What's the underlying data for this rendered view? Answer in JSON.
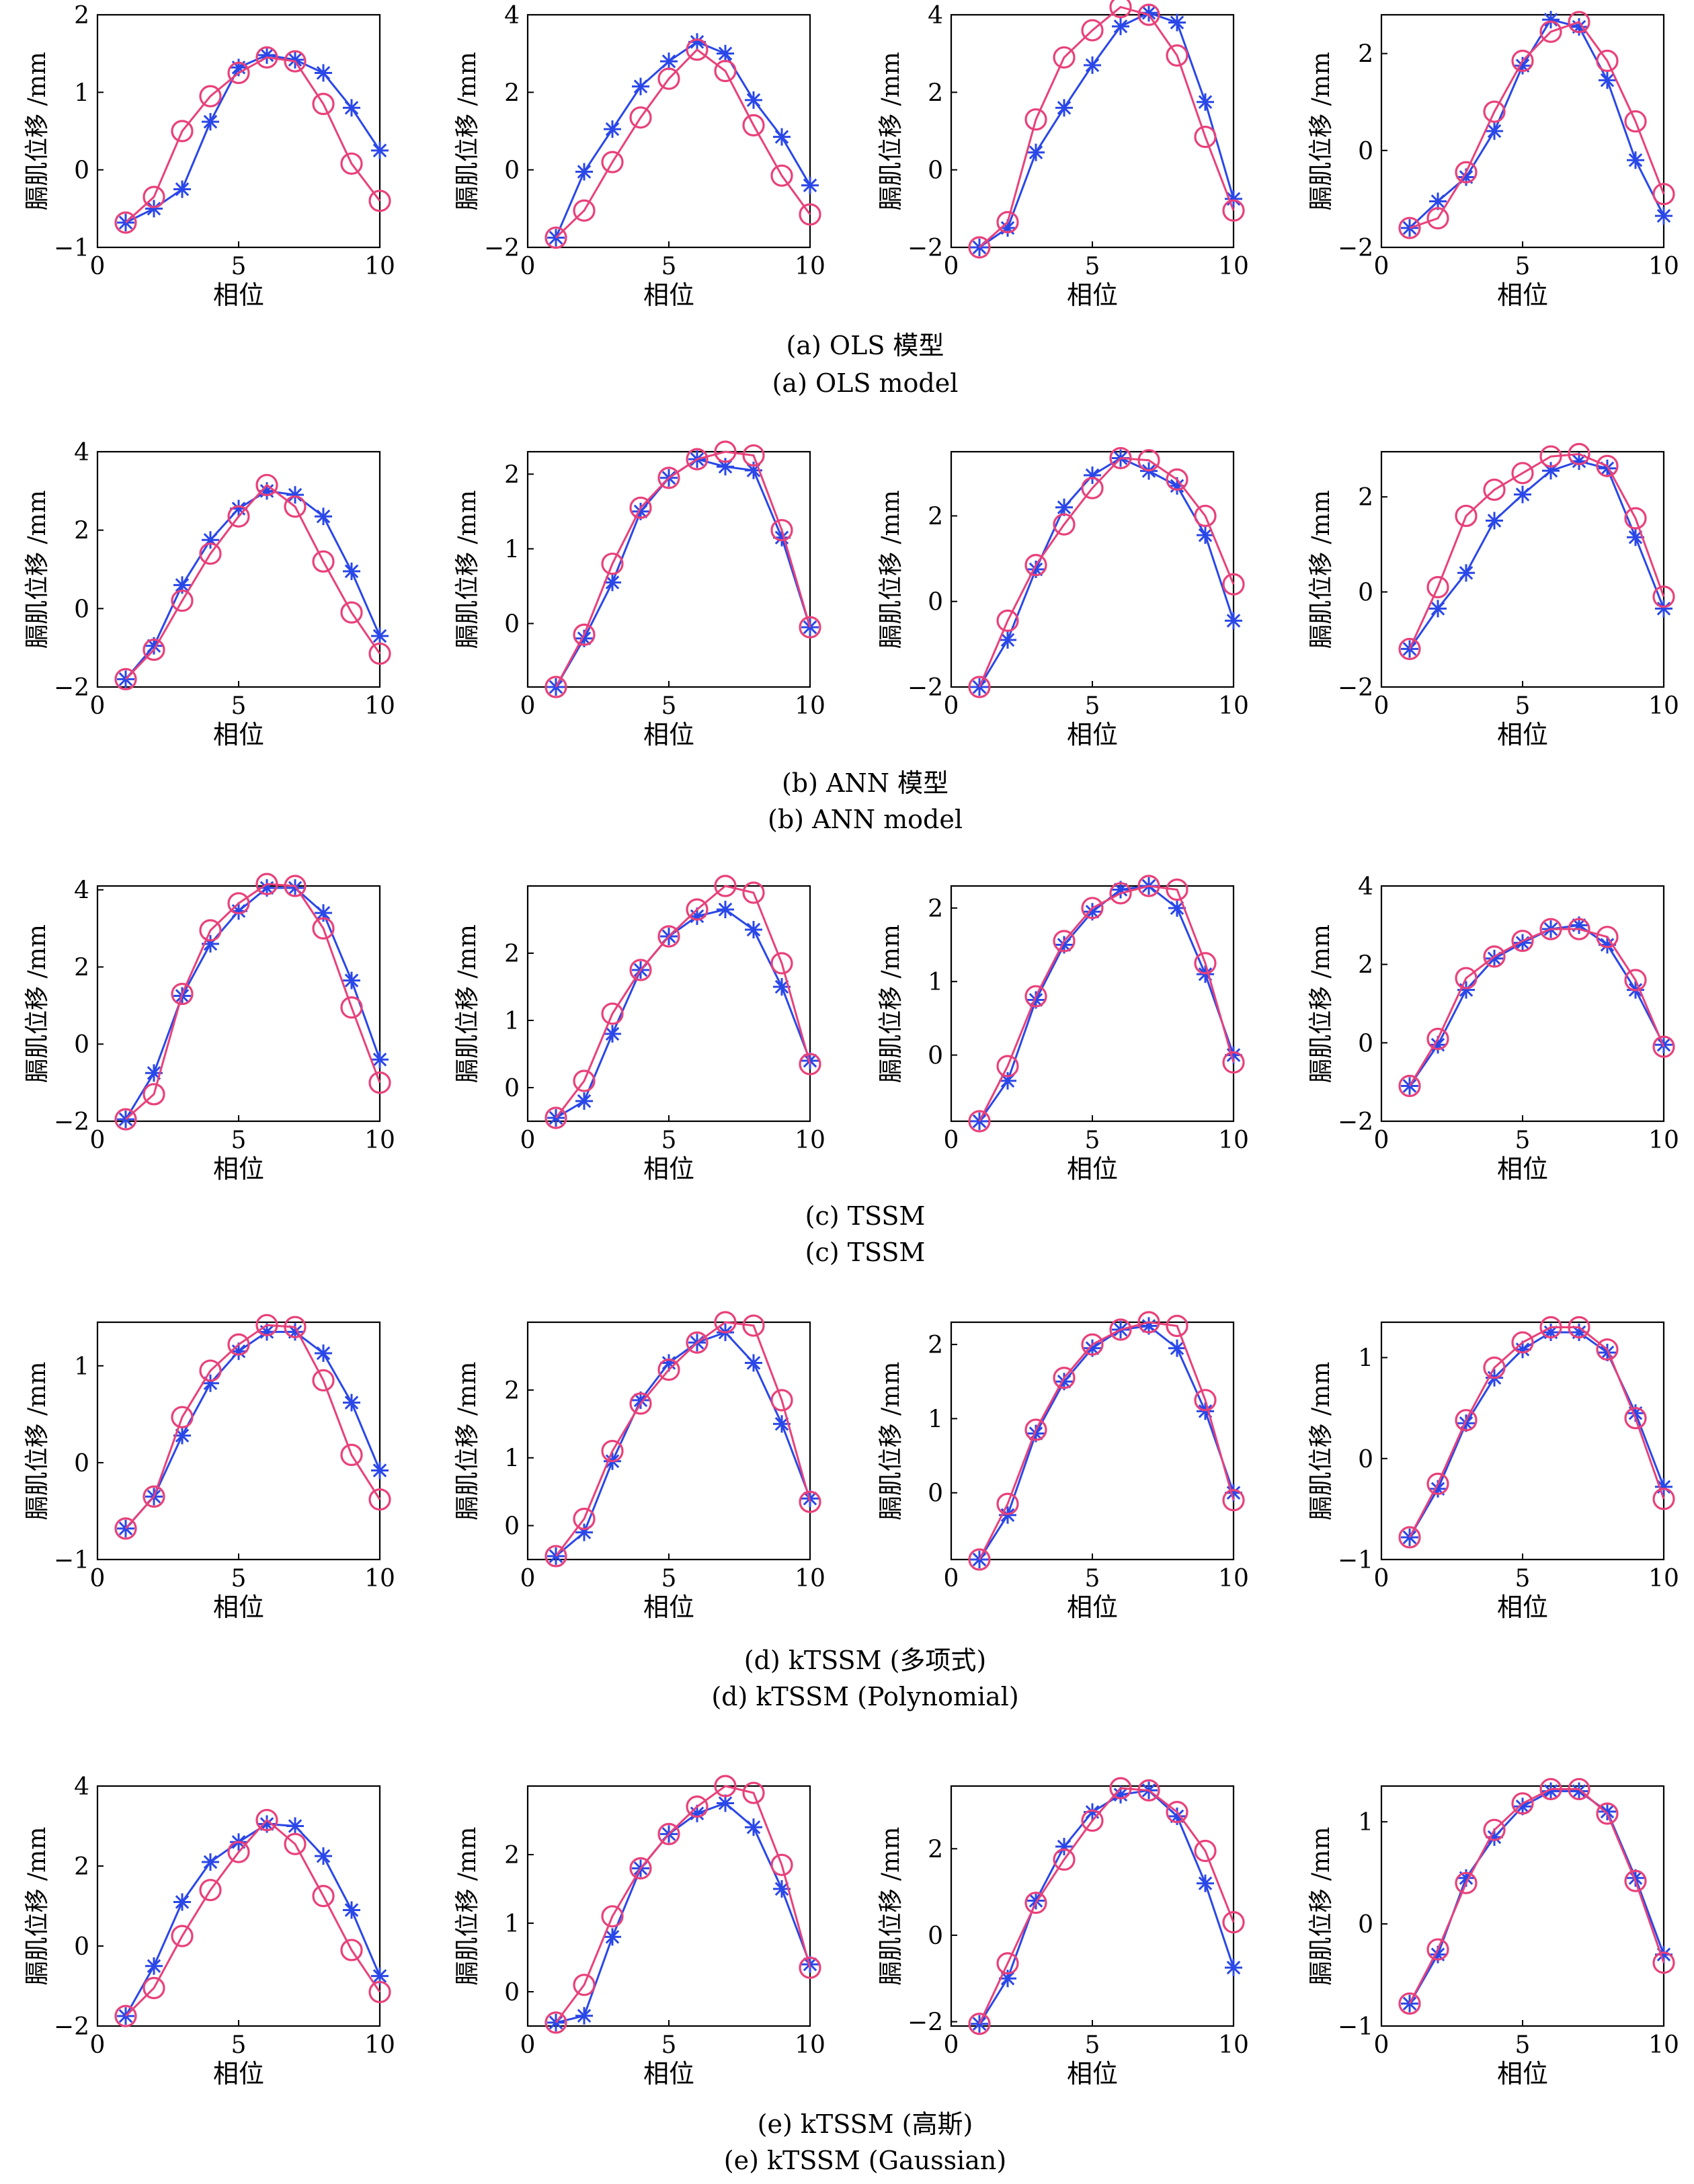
{
  "figure": {
    "y_axis_label": "膈肌位移 /mm",
    "x_axis_label": "相位",
    "series_colors": {
      "predicted": "#2a47e8",
      "measured": "#e8417a"
    },
    "markers": {
      "predicted": "asterisk",
      "measured": "circle"
    }
  },
  "panels": [
    {
      "caption_zh": "(a) OLS 模型",
      "caption_en": "(a) OLS model"
    },
    {
      "caption_zh": "(b) ANN 模型",
      "caption_en": "(b) ANN model"
    },
    {
      "caption_zh": "(c) TSSM",
      "caption_en": "(c) TSSM"
    },
    {
      "caption_zh": "(d) kTSSM (多项式)",
      "caption_en": "(d) kTSSM (Polynomial)"
    },
    {
      "caption_zh": "(e) kTSSM (高斯)",
      "caption_en": "(e) kTSSM (Gaussian)"
    }
  ],
  "chart_data": [
    {
      "panel": "a",
      "type": "line",
      "xlim": [
        0,
        10
      ],
      "ylim": [
        -1,
        2
      ],
      "x_ticks": [
        0,
        5,
        10
      ],
      "y_ticks": [
        -1,
        0,
        1,
        2
      ],
      "x": [
        1,
        2,
        3,
        4,
        5,
        6,
        7,
        8,
        9,
        10
      ],
      "series": [
        {
          "values": [
            -0.68,
            -0.5,
            -0.25,
            0.62,
            1.32,
            1.48,
            1.42,
            1.25,
            0.8,
            0.25
          ]
        },
        {
          "values": [
            -0.68,
            -0.35,
            0.5,
            0.95,
            1.25,
            1.45,
            1.4,
            0.85,
            0.08,
            -0.4
          ]
        }
      ]
    },
    {
      "panel": "a",
      "type": "line",
      "xlim": [
        0,
        10
      ],
      "ylim": [
        -2,
        4
      ],
      "x_ticks": [
        0,
        5,
        10
      ],
      "y_ticks": [
        -2,
        0,
        2,
        4
      ],
      "x": [
        1,
        2,
        3,
        4,
        5,
        6,
        7,
        8,
        9,
        10
      ],
      "series": [
        {
          "values": [
            -1.75,
            -0.05,
            1.05,
            2.15,
            2.8,
            3.3,
            3.0,
            1.8,
            0.85,
            -0.4
          ]
        },
        {
          "values": [
            -1.75,
            -1.05,
            0.2,
            1.35,
            2.35,
            3.1,
            2.55,
            1.15,
            -0.15,
            -1.15
          ]
        }
      ]
    },
    {
      "panel": "a",
      "type": "line",
      "xlim": [
        0,
        10
      ],
      "ylim": [
        -2,
        4
      ],
      "x_ticks": [
        0,
        5,
        10
      ],
      "y_ticks": [
        -2,
        0,
        2,
        4
      ],
      "x": [
        1,
        2,
        3,
        4,
        5,
        6,
        7,
        8,
        9,
        10
      ],
      "series": [
        {
          "values": [
            -2.0,
            -1.5,
            0.45,
            1.6,
            2.7,
            3.7,
            4.05,
            3.8,
            1.75,
            -0.75
          ]
        },
        {
          "values": [
            -2.0,
            -1.35,
            1.3,
            2.9,
            3.6,
            4.2,
            4.0,
            2.95,
            0.85,
            -1.05
          ]
        }
      ]
    },
    {
      "panel": "a",
      "type": "line",
      "xlim": [
        0,
        10
      ],
      "ylim": [
        -2,
        2.8
      ],
      "x_ticks": [
        0,
        5,
        10
      ],
      "y_ticks": [
        -2,
        0,
        2
      ],
      "x": [
        1,
        2,
        3,
        4,
        5,
        6,
        7,
        8,
        9,
        10
      ],
      "series": [
        {
          "values": [
            -1.6,
            -1.05,
            -0.55,
            0.4,
            1.75,
            2.7,
            2.55,
            1.45,
            -0.2,
            -1.35
          ]
        },
        {
          "values": [
            -1.6,
            -1.4,
            -0.45,
            0.8,
            1.85,
            2.45,
            2.65,
            1.85,
            0.6,
            -0.9
          ]
        }
      ]
    },
    {
      "panel": "b",
      "type": "line",
      "xlim": [
        0,
        10
      ],
      "ylim": [
        -2,
        4
      ],
      "x_ticks": [
        0,
        5,
        10
      ],
      "y_ticks": [
        -2,
        0,
        2,
        4
      ],
      "x": [
        1,
        2,
        3,
        4,
        5,
        6,
        7,
        8,
        9,
        10
      ],
      "series": [
        {
          "values": [
            -1.8,
            -0.95,
            0.6,
            1.75,
            2.55,
            3.0,
            2.9,
            2.35,
            0.95,
            -0.7
          ]
        },
        {
          "values": [
            -1.8,
            -1.05,
            0.2,
            1.4,
            2.35,
            3.15,
            2.6,
            1.2,
            -0.1,
            -1.15
          ]
        }
      ]
    },
    {
      "panel": "b",
      "type": "line",
      "xlim": [
        0,
        10
      ],
      "ylim": [
        -0.85,
        2.3
      ],
      "x_ticks": [
        0,
        5,
        10
      ],
      "y_ticks": [
        0,
        1,
        2
      ],
      "x": [
        1,
        2,
        3,
        4,
        5,
        6,
        7,
        8,
        9,
        10
      ],
      "series": [
        {
          "values": [
            -0.85,
            -0.2,
            0.55,
            1.5,
            1.95,
            2.2,
            2.1,
            2.05,
            1.15,
            -0.05
          ]
        },
        {
          "values": [
            -0.85,
            -0.15,
            0.8,
            1.55,
            1.95,
            2.2,
            2.3,
            2.25,
            1.25,
            -0.05
          ]
        }
      ]
    },
    {
      "panel": "b",
      "type": "line",
      "xlim": [
        0,
        10
      ],
      "ylim": [
        -2,
        3.5
      ],
      "x_ticks": [
        0,
        5,
        10
      ],
      "y_ticks": [
        -2,
        0,
        2
      ],
      "x": [
        1,
        2,
        3,
        4,
        5,
        6,
        7,
        8,
        9,
        10
      ],
      "series": [
        {
          "values": [
            -2.0,
            -0.9,
            0.75,
            2.2,
            2.95,
            3.35,
            3.05,
            2.7,
            1.55,
            -0.45
          ]
        },
        {
          "values": [
            -2.0,
            -0.45,
            0.85,
            1.8,
            2.65,
            3.35,
            3.3,
            2.85,
            2.0,
            0.4
          ]
        }
      ]
    },
    {
      "panel": "b",
      "type": "line",
      "xlim": [
        0,
        10
      ],
      "ylim": [
        -2,
        2.95
      ],
      "x_ticks": [
        0,
        5,
        10
      ],
      "y_ticks": [
        -2,
        0,
        2
      ],
      "x": [
        1,
        2,
        3,
        4,
        5,
        6,
        7,
        8,
        9,
        10
      ],
      "series": [
        {
          "values": [
            -1.2,
            -0.35,
            0.4,
            1.5,
            2.05,
            2.55,
            2.75,
            2.6,
            1.15,
            -0.35
          ]
        },
        {
          "values": [
            -1.2,
            0.1,
            1.6,
            2.15,
            2.5,
            2.85,
            2.9,
            2.65,
            1.55,
            -0.1
          ]
        }
      ]
    },
    {
      "panel": "c",
      "type": "line",
      "xlim": [
        0,
        10
      ],
      "ylim": [
        -2,
        4.1
      ],
      "x_ticks": [
        0,
        5,
        10
      ],
      "y_ticks": [
        -2,
        0,
        2,
        4
      ],
      "x": [
        1,
        2,
        3,
        4,
        5,
        6,
        7,
        8,
        9,
        10
      ],
      "series": [
        {
          "values": [
            -1.95,
            -0.75,
            1.25,
            2.6,
            3.45,
            4.05,
            4.05,
            3.4,
            1.65,
            -0.4
          ]
        },
        {
          "values": [
            -1.95,
            -1.3,
            1.3,
            2.95,
            3.65,
            4.15,
            4.1,
            3.0,
            0.95,
            -1.0
          ]
        }
      ]
    },
    {
      "panel": "c",
      "type": "line",
      "xlim": [
        0,
        10
      ],
      "ylim": [
        -0.5,
        3.0
      ],
      "x_ticks": [
        0,
        5,
        10
      ],
      "y_ticks": [
        0,
        1,
        2
      ],
      "x": [
        1,
        2,
        3,
        4,
        5,
        6,
        7,
        8,
        9,
        10
      ],
      "series": [
        {
          "values": [
            -0.45,
            -0.2,
            0.8,
            1.75,
            2.25,
            2.55,
            2.65,
            2.35,
            1.5,
            0.4
          ]
        },
        {
          "values": [
            -0.45,
            0.1,
            1.1,
            1.75,
            2.25,
            2.65,
            3.0,
            2.9,
            1.85,
            0.35
          ]
        }
      ]
    },
    {
      "panel": "c",
      "type": "line",
      "xlim": [
        0,
        10
      ],
      "ylim": [
        -0.9,
        2.3
      ],
      "x_ticks": [
        0,
        5,
        10
      ],
      "y_ticks": [
        0,
        1,
        2
      ],
      "x": [
        1,
        2,
        3,
        4,
        5,
        6,
        7,
        8,
        9,
        10
      ],
      "series": [
        {
          "values": [
            -0.9,
            -0.35,
            0.75,
            1.5,
            1.95,
            2.25,
            2.3,
            2.0,
            1.1,
            0.0
          ]
        },
        {
          "values": [
            -0.9,
            -0.15,
            0.8,
            1.55,
            2.0,
            2.2,
            2.3,
            2.25,
            1.25,
            -0.1
          ]
        }
      ]
    },
    {
      "panel": "c",
      "type": "line",
      "xlim": [
        0,
        10
      ],
      "ylim": [
        -2,
        4
      ],
      "x_ticks": [
        0,
        5,
        10
      ],
      "y_ticks": [
        -2,
        0,
        2,
        4
      ],
      "x": [
        1,
        2,
        3,
        4,
        5,
        6,
        7,
        8,
        9,
        10
      ],
      "series": [
        {
          "values": [
            -1.1,
            -0.05,
            1.35,
            2.15,
            2.55,
            2.9,
            3.0,
            2.5,
            1.35,
            -0.05
          ]
        },
        {
          "values": [
            -1.1,
            0.1,
            1.65,
            2.2,
            2.6,
            2.9,
            2.9,
            2.7,
            1.6,
            -0.1
          ]
        }
      ]
    },
    {
      "panel": "d",
      "type": "line",
      "xlim": [
        0,
        10
      ],
      "ylim": [
        -1,
        1.45
      ],
      "x_ticks": [
        0,
        5,
        10
      ],
      "y_ticks": [
        -1,
        0,
        1
      ],
      "x": [
        1,
        2,
        3,
        4,
        5,
        6,
        7,
        8,
        9,
        10
      ],
      "series": [
        {
          "values": [
            -0.68,
            -0.35,
            0.28,
            0.82,
            1.15,
            1.35,
            1.35,
            1.13,
            0.62,
            -0.08
          ]
        },
        {
          "values": [
            -0.68,
            -0.35,
            0.47,
            0.95,
            1.22,
            1.42,
            1.4,
            0.85,
            0.08,
            -0.38
          ]
        }
      ]
    },
    {
      "panel": "d",
      "type": "line",
      "xlim": [
        0,
        10
      ],
      "ylim": [
        -0.5,
        3.0
      ],
      "x_ticks": [
        0,
        5,
        10
      ],
      "y_ticks": [
        0,
        1,
        2
      ],
      "x": [
        1,
        2,
        3,
        4,
        5,
        6,
        7,
        8,
        9,
        10
      ],
      "series": [
        {
          "values": [
            -0.45,
            -0.1,
            0.95,
            1.85,
            2.4,
            2.7,
            2.85,
            2.4,
            1.5,
            0.4
          ]
        },
        {
          "values": [
            -0.45,
            0.1,
            1.1,
            1.8,
            2.3,
            2.7,
            3.0,
            2.95,
            1.85,
            0.35
          ]
        }
      ]
    },
    {
      "panel": "d",
      "type": "line",
      "xlim": [
        0,
        10
      ],
      "ylim": [
        -0.9,
        2.3
      ],
      "x_ticks": [
        0,
        5,
        10
      ],
      "y_ticks": [
        0,
        1,
        2
      ],
      "x": [
        1,
        2,
        3,
        4,
        5,
        6,
        7,
        8,
        9,
        10
      ],
      "series": [
        {
          "values": [
            -0.9,
            -0.3,
            0.8,
            1.5,
            1.95,
            2.2,
            2.25,
            1.95,
            1.1,
            0.0
          ]
        },
        {
          "values": [
            -0.9,
            -0.15,
            0.85,
            1.55,
            2.0,
            2.2,
            2.3,
            2.25,
            1.25,
            -0.1
          ]
        }
      ]
    },
    {
      "panel": "d",
      "type": "line",
      "xlim": [
        0,
        10
      ],
      "ylim": [
        -1,
        1.35
      ],
      "x_ticks": [
        0,
        5,
        10
      ],
      "y_ticks": [
        -1,
        0,
        1
      ],
      "x": [
        1,
        2,
        3,
        4,
        5,
        6,
        7,
        8,
        9,
        10
      ],
      "series": [
        {
          "values": [
            -0.78,
            -0.3,
            0.35,
            0.8,
            1.08,
            1.25,
            1.25,
            1.05,
            0.45,
            -0.28
          ]
        },
        {
          "values": [
            -0.78,
            -0.25,
            0.38,
            0.9,
            1.15,
            1.3,
            1.3,
            1.08,
            0.4,
            -0.4
          ]
        }
      ]
    },
    {
      "panel": "e",
      "type": "line",
      "xlim": [
        0,
        10
      ],
      "ylim": [
        -2,
        4
      ],
      "x_ticks": [
        0,
        5,
        10
      ],
      "y_ticks": [
        -2,
        0,
        2,
        4
      ],
      "x": [
        1,
        2,
        3,
        4,
        5,
        6,
        7,
        8,
        9,
        10
      ],
      "series": [
        {
          "values": [
            -1.75,
            -0.5,
            1.1,
            2.1,
            2.6,
            3.05,
            3.0,
            2.25,
            0.9,
            -0.75
          ]
        },
        {
          "values": [
            -1.75,
            -1.05,
            0.25,
            1.4,
            2.35,
            3.15,
            2.55,
            1.25,
            -0.1,
            -1.15
          ]
        }
      ]
    },
    {
      "panel": "e",
      "type": "line",
      "xlim": [
        0,
        10
      ],
      "ylim": [
        -0.5,
        3.0
      ],
      "x_ticks": [
        0,
        5,
        10
      ],
      "y_ticks": [
        0,
        1,
        2
      ],
      "x": [
        1,
        2,
        3,
        4,
        5,
        6,
        7,
        8,
        9,
        10
      ],
      "series": [
        {
          "values": [
            -0.45,
            -0.35,
            0.8,
            1.8,
            2.3,
            2.6,
            2.75,
            2.4,
            1.5,
            0.4
          ]
        },
        {
          "values": [
            -0.45,
            0.1,
            1.1,
            1.8,
            2.3,
            2.7,
            3.0,
            2.9,
            1.85,
            0.35
          ]
        }
      ]
    },
    {
      "panel": "e",
      "type": "line",
      "xlim": [
        0,
        10
      ],
      "ylim": [
        -2.1,
        3.45
      ],
      "x_ticks": [
        0,
        5,
        10
      ],
      "y_ticks": [
        -2,
        0,
        2
      ],
      "x": [
        1,
        2,
        3,
        4,
        5,
        6,
        7,
        8,
        9,
        10
      ],
      "series": [
        {
          "values": [
            -2.05,
            -1.0,
            0.8,
            2.05,
            2.85,
            3.25,
            3.35,
            2.75,
            1.2,
            -0.75
          ]
        },
        {
          "values": [
            -2.05,
            -0.65,
            0.75,
            1.75,
            2.65,
            3.4,
            3.35,
            2.85,
            1.95,
            0.3
          ]
        }
      ]
    },
    {
      "panel": "e",
      "type": "line",
      "xlim": [
        0,
        10
      ],
      "ylim": [
        -1,
        1.35
      ],
      "x_ticks": [
        0,
        5,
        10
      ],
      "y_ticks": [
        -1,
        0,
        1
      ],
      "x": [
        1,
        2,
        3,
        4,
        5,
        6,
        7,
        8,
        9,
        10
      ],
      "series": [
        {
          "values": [
            -0.78,
            -0.3,
            0.45,
            0.85,
            1.15,
            1.3,
            1.3,
            1.1,
            0.45,
            -0.3
          ]
        },
        {
          "values": [
            -0.78,
            -0.25,
            0.4,
            0.92,
            1.18,
            1.32,
            1.32,
            1.08,
            0.42,
            -0.38
          ]
        }
      ]
    }
  ]
}
